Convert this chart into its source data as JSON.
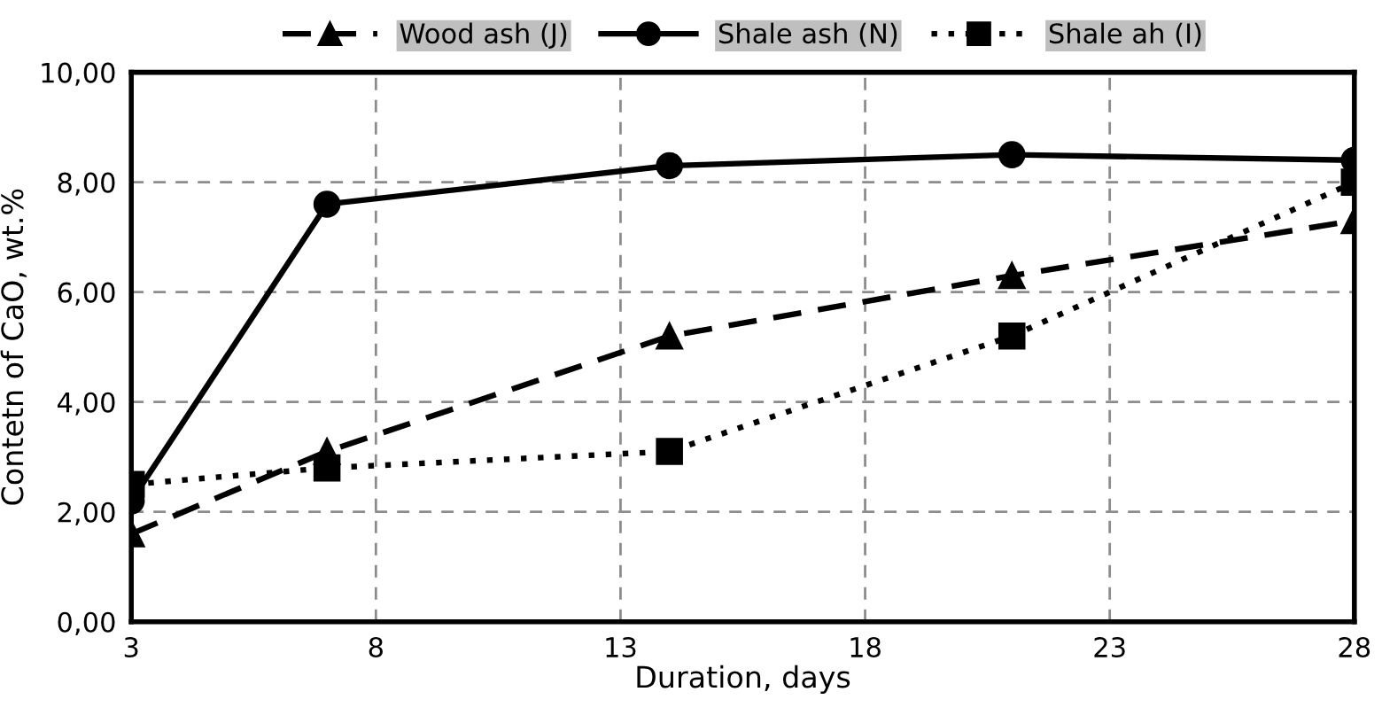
{
  "chart_data": {
    "type": "line",
    "xlabel": "Duration, days",
    "ylabel": "Contetn of CaO, wt.%",
    "x": [
      3,
      7,
      14,
      21,
      28
    ],
    "series": [
      {
        "name": "Wood ash (J)",
        "color": "#000000",
        "marker": "triangle",
        "line_style": "dashed",
        "values": [
          1.6,
          3.1,
          5.2,
          6.3,
          7.3
        ]
      },
      {
        "name": "Shale ash (N)",
        "color": "#000000",
        "marker": "circle",
        "line_style": "solid",
        "values": [
          2.2,
          7.6,
          8.3,
          8.5,
          8.4
        ]
      },
      {
        "name": "Shale ah (I)",
        "color": "#000000",
        "marker": "square",
        "line_style": "dotted",
        "values": [
          2.5,
          2.8,
          3.1,
          5.2,
          8.0
        ]
      }
    ],
    "xlim": [
      3,
      28
    ],
    "xticks": [
      3,
      8,
      13,
      18,
      23,
      28
    ],
    "ylim": [
      0,
      10
    ],
    "yticks": [
      {
        "value": 0,
        "label": "0,00"
      },
      {
        "value": 2,
        "label": "2,00"
      },
      {
        "value": 4,
        "label": "4,00"
      },
      {
        "value": 6,
        "label": "6,00"
      },
      {
        "value": 8,
        "label": "8,00"
      },
      {
        "value": 10,
        "label": "10,00"
      }
    ],
    "grid": true,
    "legend": "top"
  }
}
